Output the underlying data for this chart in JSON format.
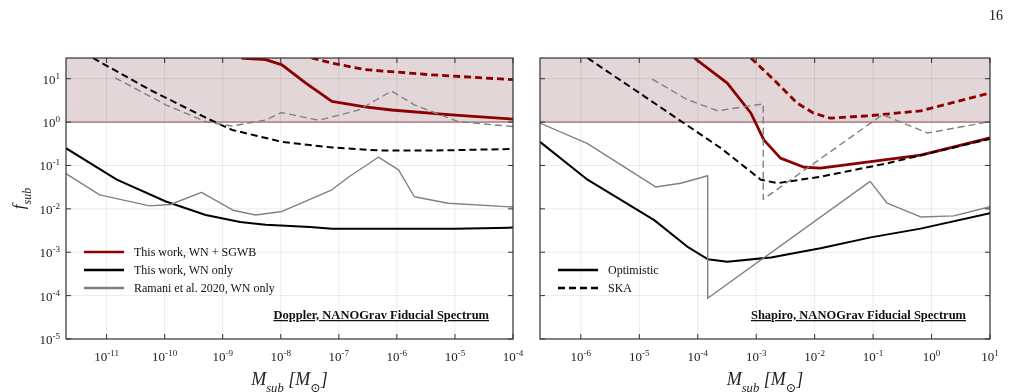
{
  "chart_data": [
    {
      "type": "line",
      "xlabel": "M$_{sub}$ [M$_{⊙}$]",
      "ylabel": "f$_{sub}$",
      "log": "xy",
      "grid": true,
      "legend": "bottom left",
      "tick_labels": "xy",
      "xlim": [
        2e-12,
        0.0001
      ],
      "ylim": [
        1e-05,
        30
      ],
      "xticks": [
        {
          "value": 1e-11,
          "label": "10$^{-11}$"
        },
        {
          "value": 1e-10,
          "label": "10$^{-10}$"
        },
        {
          "value": 1e-09,
          "label": "10$^{-9}$"
        },
        {
          "value": 1e-08,
          "label": "10$^{-8}$"
        },
        {
          "value": 1e-07,
          "label": "10$^{-7}$"
        },
        {
          "value": 1e-06,
          "label": "10$^{-6}$"
        },
        {
          "value": 1e-05,
          "label": "10$^{-5}$"
        },
        {
          "value": 0.0001,
          "label": "10$^{-4}$"
        }
      ],
      "yticks": [
        {
          "value": 1e-05,
          "label": "10$^{-5}$"
        },
        {
          "value": 0.0001,
          "label": "10$^{-4}$"
        },
        {
          "value": 0.001,
          "label": "10$^{-3}$"
        },
        {
          "value": 0.01,
          "label": "10$^{-2}$"
        },
        {
          "value": 0.1,
          "label": "10$^{-1}$"
        },
        {
          "value": 1,
          "label": "10$^{0}$"
        },
        {
          "value": 10,
          "label": "10$^{1}$"
        }
      ],
      "bands": [
        {
          "axis": "y",
          "from": 1,
          "to": 30,
          "color": "#e2d6d8"
        }
      ],
      "ref_lines": [
        {
          "axis": "y",
          "value": 1,
          "color": "#9a4a4a"
        }
      ],
      "annotations": [
        "Doppler, NANOGrav Fiducial Spectrum"
      ],
      "series": [
        {
          "name": "This work, WN + SGWB",
          "color": "#8b0000",
          "line_style": "solid",
          "x": [
            2.1e-09,
            5.5e-09,
            1.05e-08,
            2.7e-08,
            7.6e-08,
            2.8e-07,
            8.1e-07,
            7.6e-06,
            0.0001
          ],
          "values": [
            30,
            27.5,
            20.9,
            7.9,
            3.0,
            2.24,
            1.9,
            1.48,
            1.17
          ]
        },
        {
          "name": "This work, WN only",
          "color": "#000000",
          "line_style": "solid",
          "x": [
            2e-12,
            1.5e-11,
            1.05e-10,
            5.1e-10,
            2e-09,
            5.5e-09,
            3.2e-08,
            7.6e-08,
            1e-06,
            1e-05,
            0.0001
          ],
          "values": [
            0.25,
            0.047,
            0.0148,
            0.0072,
            0.005,
            0.0043,
            0.0038,
            0.0035,
            0.0035,
            0.0035,
            0.0037
          ]
        },
        {
          "name": "Ramani et al. 2020, WN only",
          "color": "#808080",
          "line_style": "solid",
          "x": [
            2e-12,
            7.6e-12,
            5.5e-11,
            1.26e-10,
            4.3e-10,
            1.5e-09,
            3.7e-09,
            1.05e-08,
            7.6e-08,
            1.5e-07,
            4.8e-07,
            1.07e-06,
            2e-06,
            7.6e-06,
            0.0001
          ],
          "values": [
            0.065,
            0.021,
            0.0117,
            0.0126,
            0.024,
            0.0093,
            0.0072,
            0.0087,
            0.0275,
            0.055,
            0.155,
            0.079,
            0.019,
            0.0135,
            0.011
          ]
        },
        {
          "color": "#8b0000",
          "line_style": "dashed",
          "x": [
            3.4e-08,
            7.6e-08,
            2.8e-07,
            3.9e-06,
            0.0001
          ],
          "values": [
            30,
            22.9,
            16.2,
            12.3,
            9.5
          ]
        },
        {
          "color": "#000000",
          "line_style": "dashed",
          "x": [
            5.8e-12,
            5.5e-11,
            5.1e-10,
            1.45e-09,
            1.05e-08,
            7.6e-08,
            5.4e-07,
            3.9e-06,
            0.0001
          ],
          "values": [
            30,
            5.6,
            1.26,
            0.66,
            0.35,
            0.26,
            0.22,
            0.22,
            0.24
          ]
        },
        {
          "color": "#808080",
          "line_style": "dashed",
          "x": [
            1.4e-11,
            1.05e-10,
            5.1e-10,
            1.45e-09,
            5.5e-09,
            1.02e-08,
            4.5e-08,
            2.2e-07,
            8.1e-07,
            2e-06,
            1.15e-05,
            0.0001
          ],
          "values": [
            10.5,
            2.5,
            1.02,
            0.81,
            1.12,
            1.66,
            1.1,
            1.9,
            5.2,
            2.5,
            1.02,
            0.79
          ]
        }
      ]
    },
    {
      "type": "line",
      "xlabel": "M$_{sub}$ [M$_{⊙}$]",
      "log": "xy",
      "grid": true,
      "legend": "bottom left",
      "tick_labels": "x",
      "xlim": [
        2e-07,
        10
      ],
      "ylim": [
        1e-05,
        30
      ],
      "xticks": [
        {
          "value": 1e-06,
          "label": "10$^{-6}$"
        },
        {
          "value": 1e-05,
          "label": "10$^{-5}$"
        },
        {
          "value": 0.0001,
          "label": "10$^{-4}$"
        },
        {
          "value": 0.001,
          "label": "10$^{-3}$"
        },
        {
          "value": 0.01,
          "label": "10$^{-2}$"
        },
        {
          "value": 0.1,
          "label": "10$^{-1}$"
        },
        {
          "value": 1,
          "label": "10$^{0}$"
        },
        {
          "value": 10,
          "label": "10$^{1}$"
        }
      ],
      "yticks": [
        {
          "value": 1e-05,
          "label": null
        },
        {
          "value": 0.0001,
          "label": null
        },
        {
          "value": 0.001,
          "label": null
        },
        {
          "value": 0.01,
          "label": null
        },
        {
          "value": 0.1,
          "label": null
        },
        {
          "value": 1,
          "label": null
        },
        {
          "value": 10,
          "label": null
        }
      ],
      "bands": [
        {
          "axis": "y",
          "from": 1,
          "to": 30,
          "color": "#e2d6d8"
        }
      ],
      "ref_lines": [
        {
          "axis": "y",
          "value": 1,
          "color": "#9a4a4a"
        }
      ],
      "annotations": [
        "Shapiro, NANOGrav Fiducial Spectrum",
        "16"
      ],
      "series": [
        {
          "color": "#8b0000",
          "line_style": "solid",
          "x": [
            8.7e-05,
            0.00032,
            0.00081,
            0.00135,
            0.0026,
            0.0066,
            0.0126,
            0.091,
            0.65,
            10
          ],
          "values": [
            30,
            7.9,
            1.62,
            0.39,
            0.148,
            0.091,
            0.087,
            0.123,
            0.174,
            0.43
          ]
        },
        {
          "name": "Optimistic",
          "color": "#000000",
          "line_style": "solid",
          "x": [
            2e-07,
            1.3e-06,
            1.8e-05,
            6.6e-05,
            0.000148,
            0.00032,
            0.0018,
            0.0126,
            0.091,
            0.65,
            10
          ],
          "values": [
            0.35,
            0.047,
            0.0055,
            0.00135,
            0.00069,
            0.0006,
            0.00076,
            0.00123,
            0.0022,
            0.0035,
            0.0079
          ]
        },
        {
          "color": "#808080",
          "line_style": "solid",
          "x": [
            2e-07,
            1.3e-06,
            1.9e-05,
            5.1e-05,
            0.000148,
            0.000148,
            0.089,
            0.174,
            0.65,
            2.4,
            10
          ],
          "values": [
            0.95,
            0.32,
            0.032,
            0.039,
            0.058,
            8.7e-05,
            0.043,
            0.0135,
            0.0065,
            0.0069,
            0.0112
          ]
        },
        {
          "color": "#8b0000",
          "line_style": "dashed",
          "x": [
            0.00081,
            0.002,
            0.005,
            0.0095,
            0.0186,
            0.091,
            0.65,
            10
          ],
          "values": [
            30,
            9.5,
            2.75,
            1.62,
            1.23,
            1.41,
            1.82,
            4.7
          ]
        },
        {
          "name": "SKA",
          "color": "#000000",
          "line_style": "dashed",
          "x": [
            1.3e-06,
            1.8e-05,
            0.00025,
            0.0012,
            0.0023,
            0.0126,
            0.174,
            10
          ],
          "values": [
            30,
            2.75,
            0.25,
            0.047,
            0.039,
            0.055,
            0.112,
            0.41
          ]
        },
        {
          "color": "#808080",
          "line_style": "dashed",
          "x": [
            1.66e-05,
            6.6e-05,
            0.00022,
            0.00132,
            0.00132,
            0.145,
            0.85,
            10
          ],
          "values": [
            9.8,
            3.3,
            1.82,
            2.63,
            0.0166,
            1.48,
            0.56,
            1.02
          ]
        }
      ]
    }
  ]
}
